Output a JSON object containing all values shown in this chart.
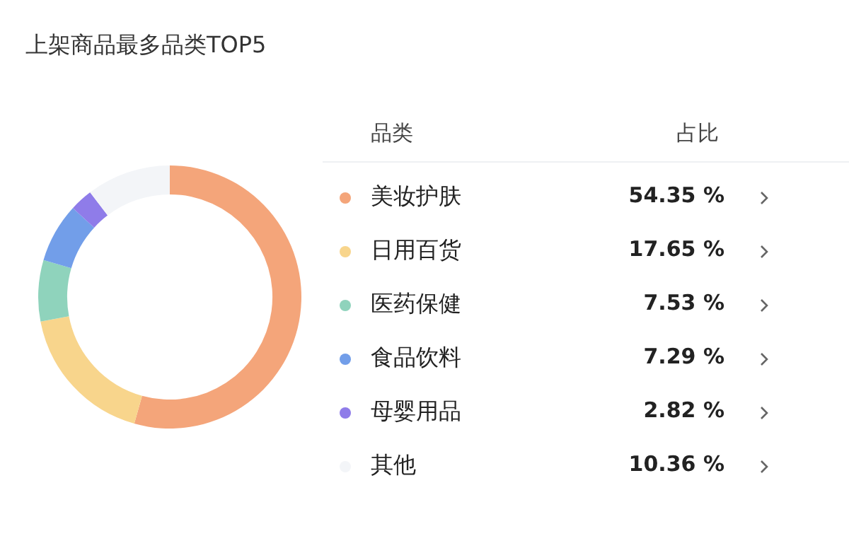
{
  "chart_data": {
    "type": "donut",
    "title": "上架商品最多品类TOP5",
    "legend_title": "品类",
    "annotations": [
      "占比"
    ],
    "categories": [
      "美妆护肤",
      "日用百货",
      "医药保健",
      "食品饮料",
      "母婴用品",
      "其他"
    ],
    "values": [
      54.35,
      17.65,
      7.53,
      7.29,
      2.82,
      10.36
    ],
    "value_labels": [
      "54.35 %",
      "17.65 %",
      "7.53 %",
      "7.29 %",
      "2.82 %",
      "10.36 %"
    ],
    "colors": [
      "#f4a57a",
      "#f8d58c",
      "#8fd3bc",
      "#729ee9",
      "#8f7ce9",
      "#f3f5f8"
    ],
    "legend": "right"
  }
}
